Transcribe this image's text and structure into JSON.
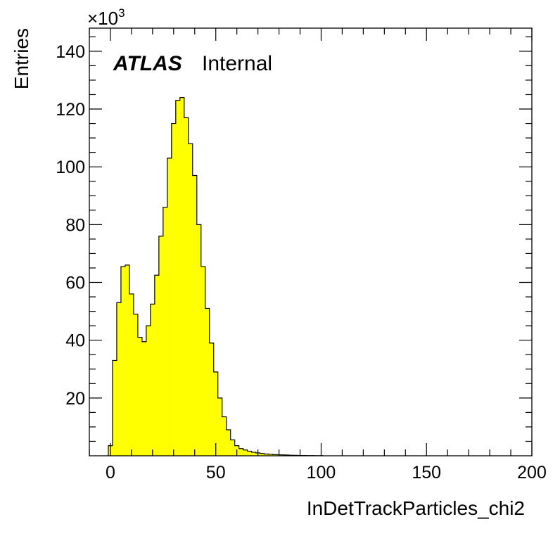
{
  "chart_data": {
    "type": "bar",
    "histogram": true,
    "xlabel": "InDetTrackParticles_chi2",
    "ylabel": "Entries",
    "y_multiplier": {
      "base": "×10",
      "exponent": "3"
    },
    "xlim": [
      -10,
      200
    ],
    "ylim": [
      0,
      148
    ],
    "x_ticks": [
      0,
      50,
      100,
      150,
      200
    ],
    "y_ticks": [
      20,
      40,
      60,
      80,
      100,
      120,
      140
    ],
    "bin_width": 2,
    "bin_start": -1,
    "values": [
      3.5,
      33,
      53,
      65.5,
      66,
      56,
      49,
      41,
      39.5,
      45,
      52.5,
      62.5,
      76,
      86,
      103,
      115,
      123,
      124,
      117,
      108,
      97,
      80,
      65.5,
      51,
      39,
      29,
      20,
      13.5,
      9,
      5.5,
      3.5,
      2.5,
      2,
      1.6,
      1.2,
      1,
      0.8,
      0.6,
      0.5,
      0.4,
      0.35,
      0.3,
      0.25,
      0.2,
      0.15,
      0.1,
      0.1,
      0.08,
      0.06,
      0.05,
      0.04
    ],
    "fill_color": "#ffff00",
    "line_color": "#000000",
    "annotation": {
      "bold": "ATLAS",
      "normal": "Internal"
    }
  }
}
